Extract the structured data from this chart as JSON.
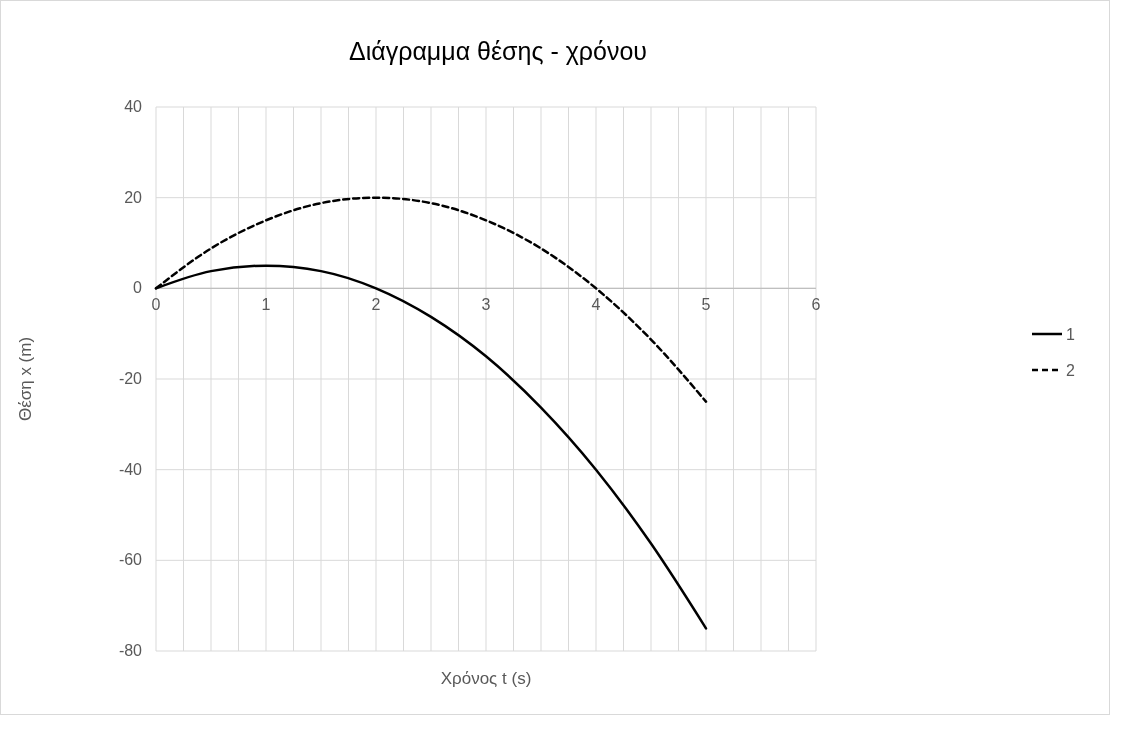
{
  "chart_data": {
    "type": "line",
    "title": "Διάγραμμα θέσης - χρόνου",
    "xlabel": "Χρόνος t (s)",
    "ylabel": "Θέση x (m)",
    "x": [
      0,
      0.5,
      1,
      1.5,
      2,
      2.5,
      3,
      3.5,
      4,
      4.5,
      5
    ],
    "series": [
      {
        "name": "1",
        "color": "#000000",
        "line_style": "solid",
        "values": [
          0,
          3.8,
          5,
          3.8,
          0,
          -6.3,
          -15,
          -26.3,
          -40,
          -56.3,
          -75
        ]
      },
      {
        "name": "2",
        "color": "#000000",
        "line_style": "dashed",
        "values": [
          0,
          8.8,
          15,
          18.8,
          20,
          18.8,
          15,
          8.8,
          0,
          -11.3,
          -25
        ]
      }
    ],
    "xlim": [
      0,
      6
    ],
    "xticks": [
      0,
      {
        "value": 0.25,
        "label": null
      },
      {
        "value": 0.5,
        "label": null
      },
      {
        "value": 0.75,
        "label": null
      },
      1,
      {
        "value": 1.25,
        "label": null
      },
      {
        "value": 1.5,
        "label": null
      },
      {
        "value": 1.75,
        "label": null
      },
      2,
      {
        "value": 2.25,
        "label": null
      },
      {
        "value": 2.5,
        "label": null
      },
      {
        "value": 2.75,
        "label": null
      },
      3,
      {
        "value": 3.25,
        "label": null
      },
      {
        "value": 3.5,
        "label": null
      },
      {
        "value": 3.75,
        "label": null
      },
      4,
      {
        "value": 4.25,
        "label": null
      },
      {
        "value": 4.5,
        "label": null
      },
      {
        "value": 4.75,
        "label": null
      },
      5,
      {
        "value": 5.25,
        "label": null
      },
      {
        "value": 5.5,
        "label": null
      },
      {
        "value": 5.75,
        "label": null
      },
      6
    ],
    "ylim": [
      -80,
      40
    ],
    "yticks": [
      -80,
      -60,
      -40,
      -20,
      0,
      20,
      40
    ],
    "grid": true,
    "legend": "right"
  }
}
